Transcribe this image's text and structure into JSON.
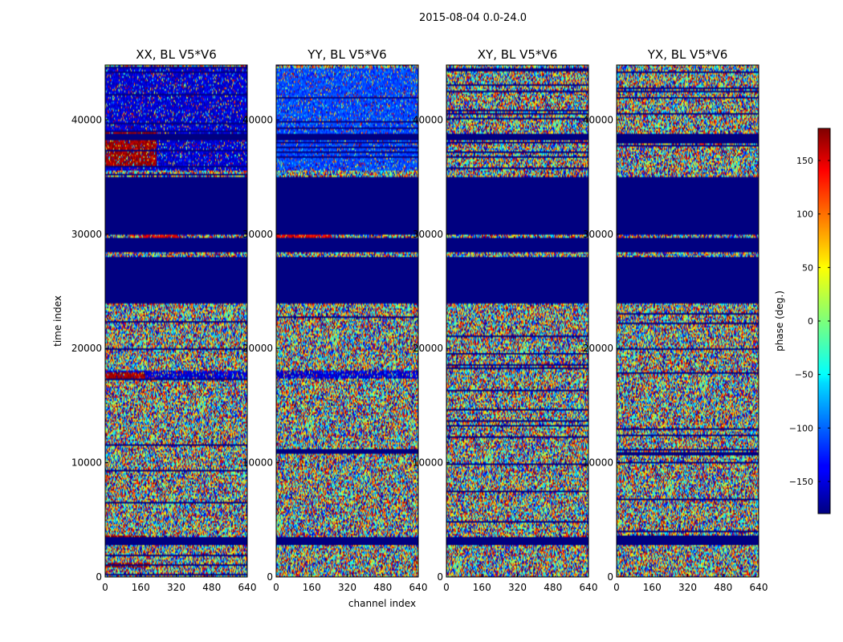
{
  "chart_data": {
    "type": "heatmap",
    "title": "2015-08-04 0.0-24.0",
    "xlabel": "channel index",
    "ylabel": "time index",
    "xlim": [
      0,
      640
    ],
    "ylim": [
      0,
      44800
    ],
    "x_ticks": [
      0,
      160,
      320,
      480,
      640
    ],
    "y_ticks": [
      0,
      10000,
      20000,
      30000,
      40000
    ],
    "colorbar": {
      "label": "phase (deg.)",
      "range": [
        -180,
        180
      ],
      "ticks": [
        150,
        100,
        50,
        0,
        -50,
        -100,
        -150
      ],
      "colormap": "jet"
    },
    "panels": [
      {
        "title": "XX, BL V5*V6",
        "flagged_time_ranges": [
          [
            2800,
            3500
          ],
          [
            24000,
            28000
          ],
          [
            28400,
            29700
          ],
          [
            30000,
            35000
          ],
          [
            38200,
            38800
          ]
        ],
        "coherent_regions": [
          {
            "t": [
              35500,
              44500
            ],
            "ch": [
              0,
              640
            ],
            "phase": -150
          },
          {
            "t": [
              36000,
              39000
            ],
            "ch": [
              0,
              230
            ],
            "phase": 170
          },
          {
            "t": [
              28500,
              29900
            ],
            "ch": [
              150,
              330
            ],
            "phase": 140
          },
          {
            "t": [
              17300,
              18000
            ],
            "ch": [
              0,
              640
            ],
            "phase": -150
          },
          {
            "t": [
              17400,
              17900
            ],
            "ch": [
              0,
              180
            ],
            "phase": 170
          },
          {
            "t": [
              3000,
              3600
            ],
            "ch": [
              0,
              180
            ],
            "phase": 170
          },
          {
            "t": [
              900,
              1200
            ],
            "ch": [
              0,
              200
            ],
            "phase": 170
          }
        ]
      },
      {
        "title": "YY, BL V5*V6",
        "flagged_time_ranges": [
          [
            2800,
            3500
          ],
          [
            24000,
            28000
          ],
          [
            28400,
            29700
          ],
          [
            30000,
            35000
          ],
          [
            38200,
            38800
          ]
        ],
        "coherent_regions": [
          {
            "t": [
              35500,
              44500
            ],
            "ch": [
              0,
              640
            ],
            "phase": -110
          },
          {
            "t": [
              28500,
              29900
            ],
            "ch": [
              0,
              250
            ],
            "phase": 140
          },
          {
            "t": [
              17300,
              18000
            ],
            "ch": [
              0,
              640
            ],
            "phase": -150
          }
        ]
      },
      {
        "title": "XY, BL V5*V6",
        "flagged_time_ranges": [
          [
            2800,
            3500
          ],
          [
            24000,
            28000
          ],
          [
            28400,
            29700
          ],
          [
            30000,
            35000
          ],
          [
            38200,
            38800
          ]
        ],
        "coherent_regions": []
      },
      {
        "title": "YX, BL V5*V6",
        "flagged_time_ranges": [
          [
            2800,
            3500
          ],
          [
            24000,
            28000
          ],
          [
            28400,
            29700
          ],
          [
            30000,
            35000
          ],
          [
            38200,
            38800
          ]
        ],
        "coherent_regions": []
      }
    ]
  }
}
